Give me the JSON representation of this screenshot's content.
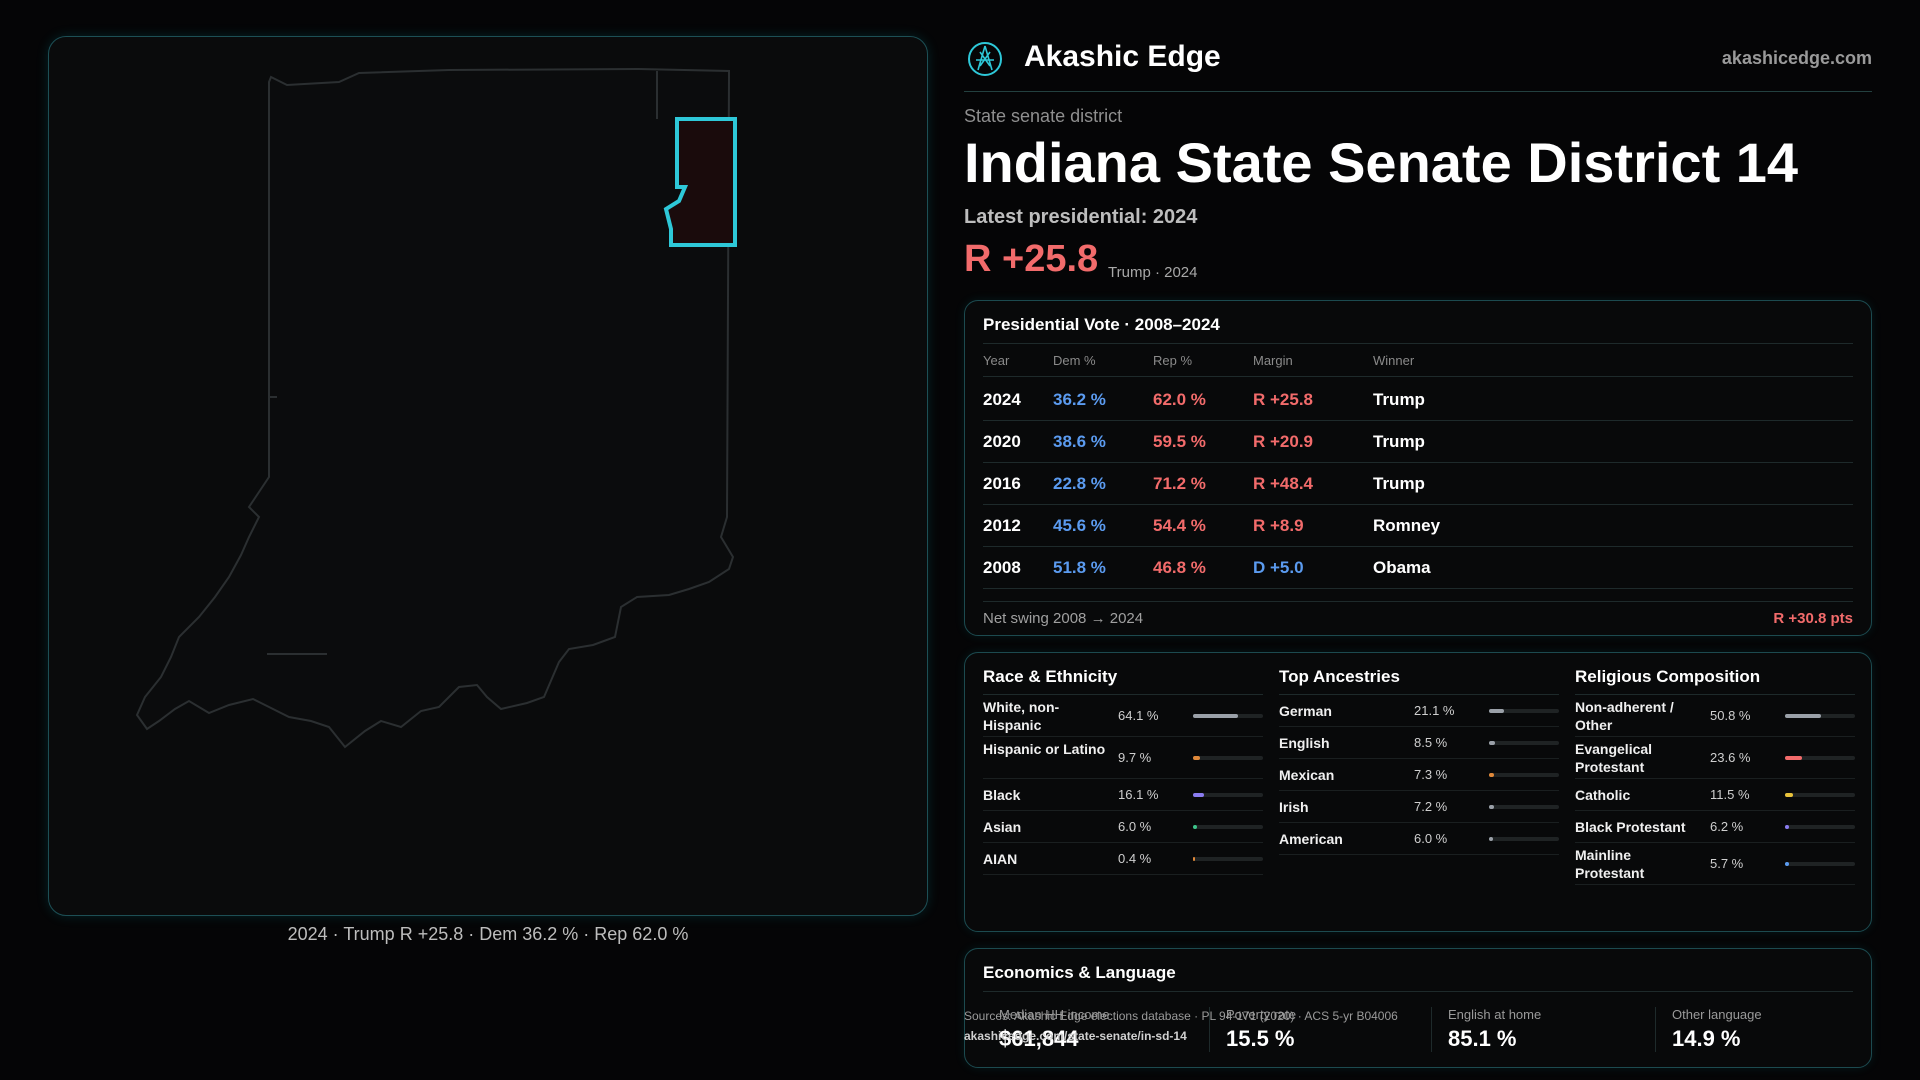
{
  "brand": {
    "name": "Akashic Edge",
    "site": "akashicedge.com",
    "logo_icon": "compass-logo-icon"
  },
  "district": {
    "kind": "State senate district",
    "title": "Indiana State Senate District 14",
    "latest": "Latest presidential: 2024",
    "margin": "R +25.8",
    "margin_note": "Trump · 2024"
  },
  "map": {
    "caption": "2024 · Trump R +25.8 · Dem 36.2 % · Rep 62.0 %",
    "district_color": "#2ec8d8"
  },
  "presidential": {
    "heading": "Presidential Vote · 2008–2024",
    "columns": [
      "Year",
      "Dem %",
      "Rep %",
      "Margin",
      "Winner"
    ],
    "rows": [
      {
        "year": "2024",
        "dem": "36.2 %",
        "rep": "62.0 %",
        "margin": "R +25.8",
        "winner": "Trump",
        "party": "R"
      },
      {
        "year": "2020",
        "dem": "38.6 %",
        "rep": "59.5 %",
        "margin": "R +20.9",
        "winner": "Trump",
        "party": "R"
      },
      {
        "year": "2016",
        "dem": "22.8 %",
        "rep": "71.2 %",
        "margin": "R +48.4",
        "winner": "Trump",
        "party": "R"
      },
      {
        "year": "2012",
        "dem": "45.6 %",
        "rep": "54.4 %",
        "margin": "R +8.9",
        "winner": "Romney",
        "party": "R"
      },
      {
        "year": "2008",
        "dem": "51.8 %",
        "rep": "46.8 %",
        "margin": "D +5.0",
        "winner": "Obama",
        "party": "D"
      }
    ],
    "swing_label": "Net swing 2008 → 2024",
    "swing_value": "R +30.8 pts"
  },
  "race": {
    "heading": "Race & Ethnicity",
    "items": [
      {
        "label": "White, non-Hispanic",
        "pct": "64.1 %",
        "share": 0.641,
        "color": "#9aa0a8"
      },
      {
        "label": "Hispanic or Latino",
        "pct": "9.7 %",
        "share": 0.097,
        "color": "#e0893a"
      },
      {
        "label": "Black",
        "pct": "16.1 %",
        "share": 0.161,
        "color": "#8a7cf0"
      },
      {
        "label": "Asian",
        "pct": "6.0 %",
        "share": 0.06,
        "color": "#3cc48a"
      },
      {
        "label": "AIAN",
        "pct": "0.4 %",
        "share": 0.004,
        "color": "#e0893a"
      }
    ]
  },
  "ancestry": {
    "heading": "Top Ancestries",
    "items": [
      {
        "label": "German",
        "pct": "21.1 %",
        "share": 0.211,
        "color": "#9aa0a8"
      },
      {
        "label": "English",
        "pct": "8.5 %",
        "share": 0.085,
        "color": "#9aa0a8"
      },
      {
        "label": "Mexican",
        "pct": "7.3 %",
        "share": 0.073,
        "color": "#e0893a"
      },
      {
        "label": "Irish",
        "pct": "7.2 %",
        "share": 0.072,
        "color": "#9aa0a8"
      },
      {
        "label": "American",
        "pct": "6.0 %",
        "share": 0.06,
        "color": "#9aa0a8"
      }
    ]
  },
  "religion": {
    "heading": "Religious Composition",
    "items": [
      {
        "label": "Non-adherent / Other",
        "pct": "50.8 %",
        "share": 0.508,
        "color": "#9aa0a8"
      },
      {
        "label": "Evangelical Protestant",
        "pct": "23.6 %",
        "share": 0.236,
        "color": "#f26b6b"
      },
      {
        "label": "Catholic",
        "pct": "11.5 %",
        "share": 0.115,
        "color": "#e8c23a"
      },
      {
        "label": "Black Protestant",
        "pct": "6.2 %",
        "share": 0.062,
        "color": "#8a7cf0"
      },
      {
        "label": "Mainline Protestant",
        "pct": "5.7 %",
        "share": 0.057,
        "color": "#5b9bf0"
      }
    ]
  },
  "economics": {
    "heading": "Economics & Language",
    "items": [
      {
        "label": "Median HH income",
        "value": "$61,844"
      },
      {
        "label": "Poverty rate",
        "value": "15.5 %"
      },
      {
        "label": "English at home",
        "value": "85.1 %"
      },
      {
        "label": "Other language",
        "value": "14.9 %"
      }
    ]
  },
  "sources": {
    "text": "Sources: Akashic Edge elections database · PL 94-171 (2020) · ACS 5-yr B04006",
    "url": "akashicedge.com/state-senate/in-sd-14"
  }
}
